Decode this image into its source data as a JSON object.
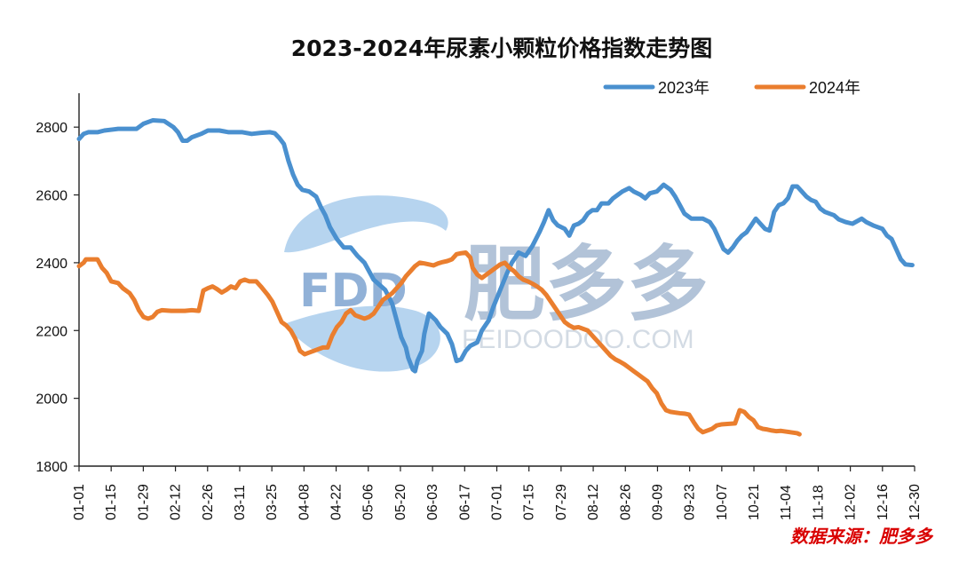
{
  "chart_data": {
    "type": "line",
    "title": "2023-2024年尿素小颗粒价格指数走势图",
    "xlabel": "",
    "ylabel": "",
    "ylim": [
      1800,
      2900
    ],
    "yticks": [
      1800,
      2000,
      2200,
      2400,
      2600,
      2800
    ],
    "xticks": [
      "01-01",
      "01-15",
      "01-29",
      "02-12",
      "02-26",
      "03-11",
      "03-25",
      "04-08",
      "04-22",
      "05-06",
      "05-20",
      "06-03",
      "06-17",
      "07-01",
      "07-15",
      "07-29",
      "08-12",
      "08-26",
      "09-09",
      "09-23",
      "10-07",
      "10-21",
      "11-04",
      "11-18",
      "12-02",
      "12-16",
      "12-30"
    ],
    "x_unit": "day of year",
    "legend_position": "top-right",
    "grid": false,
    "series": [
      {
        "name": "2023年",
        "color": "#4a90cf",
        "points": [
          [
            1,
            2765
          ],
          [
            3,
            2780
          ],
          [
            5,
            2785
          ],
          [
            9,
            2785
          ],
          [
            12,
            2790
          ],
          [
            18,
            2795
          ],
          [
            26,
            2795
          ],
          [
            29,
            2810
          ],
          [
            33,
            2820
          ],
          [
            38,
            2818
          ],
          [
            42,
            2800
          ],
          [
            44,
            2785
          ],
          [
            46,
            2760
          ],
          [
            48,
            2760
          ],
          [
            50,
            2770
          ],
          [
            54,
            2780
          ],
          [
            57,
            2790
          ],
          [
            62,
            2790
          ],
          [
            66,
            2785
          ],
          [
            72,
            2785
          ],
          [
            76,
            2780
          ],
          [
            80,
            2783
          ],
          [
            84,
            2785
          ],
          [
            86,
            2782
          ],
          [
            88,
            2768
          ],
          [
            90,
            2750
          ],
          [
            92,
            2700
          ],
          [
            94,
            2660
          ],
          [
            96,
            2630
          ],
          [
            98,
            2615
          ],
          [
            101,
            2610
          ],
          [
            104,
            2595
          ],
          [
            106,
            2565
          ],
          [
            108,
            2540
          ],
          [
            110,
            2505
          ],
          [
            113,
            2470
          ],
          [
            116,
            2445
          ],
          [
            119,
            2445
          ],
          [
            122,
            2420
          ],
          [
            125,
            2400
          ],
          [
            129,
            2350
          ],
          [
            134,
            2320
          ],
          [
            137,
            2280
          ],
          [
            139,
            2230
          ],
          [
            141,
            2180
          ],
          [
            143,
            2150
          ],
          [
            144,
            2120
          ],
          [
            146,
            2085
          ],
          [
            147,
            2080
          ],
          [
            148,
            2110
          ],
          [
            150,
            2140
          ],
          [
            151,
            2190
          ],
          [
            153,
            2250
          ],
          [
            156,
            2230
          ],
          [
            158,
            2210
          ],
          [
            161,
            2190
          ],
          [
            163,
            2160
          ],
          [
            165,
            2110
          ],
          [
            167,
            2115
          ],
          [
            169,
            2140
          ],
          [
            171,
            2155
          ],
          [
            174,
            2165
          ],
          [
            176,
            2200
          ],
          [
            179,
            2230
          ],
          [
            181,
            2270
          ],
          [
            184,
            2320
          ],
          [
            187,
            2370
          ],
          [
            189,
            2400
          ],
          [
            192,
            2430
          ],
          [
            195,
            2420
          ],
          [
            198,
            2450
          ],
          [
            201,
            2490
          ],
          [
            203,
            2520
          ],
          [
            205,
            2555
          ],
          [
            207,
            2525
          ],
          [
            209,
            2510
          ],
          [
            212,
            2500
          ],
          [
            214,
            2480
          ],
          [
            216,
            2510
          ],
          [
            218,
            2515
          ],
          [
            220,
            2525
          ],
          [
            222,
            2545
          ],
          [
            224,
            2555
          ],
          [
            226,
            2555
          ],
          [
            228,
            2575
          ],
          [
            231,
            2575
          ],
          [
            233,
            2590
          ],
          [
            235,
            2600
          ],
          [
            237,
            2610
          ],
          [
            240,
            2620
          ],
          [
            242,
            2610
          ],
          [
            245,
            2600
          ],
          [
            247,
            2590
          ],
          [
            249,
            2605
          ],
          [
            252,
            2610
          ],
          [
            255,
            2630
          ],
          [
            258,
            2615
          ],
          [
            260,
            2595
          ],
          [
            262,
            2570
          ],
          [
            264,
            2545
          ],
          [
            267,
            2530
          ],
          [
            272,
            2530
          ],
          [
            275,
            2520
          ],
          [
            277,
            2500
          ],
          [
            279,
            2470
          ],
          [
            281,
            2440
          ],
          [
            283,
            2430
          ],
          [
            285,
            2445
          ],
          [
            287,
            2465
          ],
          [
            289,
            2480
          ],
          [
            291,
            2490
          ],
          [
            293,
            2510
          ],
          [
            295,
            2530
          ],
          [
            297,
            2515
          ],
          [
            299,
            2500
          ],
          [
            301,
            2495
          ],
          [
            303,
            2550
          ],
          [
            305,
            2570
          ],
          [
            307,
            2575
          ],
          [
            309,
            2590
          ],
          [
            311,
            2625
          ],
          [
            313,
            2625
          ],
          [
            315,
            2610
          ],
          [
            317,
            2595
          ],
          [
            319,
            2585
          ],
          [
            321,
            2580
          ],
          [
            323,
            2560
          ],
          [
            325,
            2550
          ],
          [
            327,
            2545
          ],
          [
            329,
            2540
          ],
          [
            331,
            2528
          ],
          [
            334,
            2520
          ],
          [
            337,
            2515
          ],
          [
            341,
            2530
          ],
          [
            343,
            2520
          ],
          [
            346,
            2510
          ],
          [
            350,
            2500
          ],
          [
            352,
            2480
          ],
          [
            354,
            2470
          ],
          [
            356,
            2440
          ],
          [
            358,
            2410
          ],
          [
            360,
            2395
          ],
          [
            363,
            2393
          ]
        ]
      },
      {
        "name": "2024年",
        "color": "#ea7e2e",
        "points": [
          [
            1,
            2390
          ],
          [
            3,
            2400
          ],
          [
            4,
            2410
          ],
          [
            9,
            2410
          ],
          [
            11,
            2385
          ],
          [
            13,
            2370
          ],
          [
            15,
            2345
          ],
          [
            18,
            2340
          ],
          [
            20,
            2325
          ],
          [
            23,
            2310
          ],
          [
            25,
            2290
          ],
          [
            27,
            2260
          ],
          [
            29,
            2240
          ],
          [
            31,
            2235
          ],
          [
            33,
            2240
          ],
          [
            35,
            2255
          ],
          [
            37,
            2260
          ],
          [
            41,
            2258
          ],
          [
            43,
            2258
          ],
          [
            47,
            2258
          ],
          [
            50,
            2260
          ],
          [
            53,
            2258
          ],
          [
            55,
            2318
          ],
          [
            57,
            2325
          ],
          [
            59,
            2330
          ],
          [
            61,
            2322
          ],
          [
            63,
            2312
          ],
          [
            65,
            2320
          ],
          [
            67,
            2330
          ],
          [
            69,
            2325
          ],
          [
            71,
            2345
          ],
          [
            73,
            2350
          ],
          [
            75,
            2345
          ],
          [
            78,
            2345
          ],
          [
            80,
            2330
          ],
          [
            83,
            2305
          ],
          [
            85,
            2285
          ],
          [
            87,
            2255
          ],
          [
            89,
            2225
          ],
          [
            91,
            2215
          ],
          [
            93,
            2200
          ],
          [
            95,
            2175
          ],
          [
            97,
            2140
          ],
          [
            99,
            2130
          ],
          [
            101,
            2135
          ],
          [
            103,
            2140
          ],
          [
            105,
            2145
          ],
          [
            107,
            2150
          ],
          [
            109,
            2150
          ],
          [
            111,
            2185
          ],
          [
            113,
            2210
          ],
          [
            115,
            2225
          ],
          [
            117,
            2250
          ],
          [
            119,
            2260
          ],
          [
            121,
            2245
          ],
          [
            123,
            2240
          ],
          [
            125,
            2235
          ],
          [
            127,
            2240
          ],
          [
            129,
            2250
          ],
          [
            131,
            2270
          ],
          [
            133,
            2290
          ],
          [
            135,
            2300
          ],
          [
            137,
            2310
          ],
          [
            139,
            2325
          ],
          [
            141,
            2340
          ],
          [
            143,
            2360
          ],
          [
            145,
            2375
          ],
          [
            147,
            2390
          ],
          [
            149,
            2400
          ],
          [
            151,
            2398
          ],
          [
            153,
            2395
          ],
          [
            155,
            2392
          ],
          [
            157,
            2398
          ],
          [
            159,
            2402
          ],
          [
            161,
            2405
          ],
          [
            163,
            2410
          ],
          [
            165,
            2425
          ],
          [
            167,
            2428
          ],
          [
            169,
            2430
          ],
          [
            171,
            2415
          ],
          [
            172,
            2385
          ],
          [
            174,
            2365
          ],
          [
            176,
            2355
          ],
          [
            178,
            2365
          ],
          [
            180,
            2375
          ],
          [
            182,
            2385
          ],
          [
            184,
            2395
          ],
          [
            186,
            2400
          ],
          [
            188,
            2385
          ],
          [
            190,
            2375
          ],
          [
            192,
            2360
          ],
          [
            194,
            2350
          ],
          [
            196,
            2345
          ],
          [
            198,
            2338
          ],
          [
            200,
            2330
          ],
          [
            202,
            2320
          ],
          [
            204,
            2305
          ],
          [
            206,
            2285
          ],
          [
            208,
            2265
          ],
          [
            210,
            2245
          ],
          [
            212,
            2225
          ],
          [
            214,
            2215
          ],
          [
            216,
            2208
          ],
          [
            218,
            2210
          ],
          [
            220,
            2205
          ],
          [
            222,
            2200
          ],
          [
            224,
            2185
          ],
          [
            226,
            2170
          ],
          [
            228,
            2155
          ],
          [
            230,
            2140
          ],
          [
            232,
            2125
          ],
          [
            234,
            2115
          ],
          [
            236,
            2108
          ],
          [
            238,
            2100
          ],
          [
            240,
            2090
          ],
          [
            242,
            2080
          ],
          [
            244,
            2070
          ],
          [
            246,
            2060
          ],
          [
            248,
            2050
          ],
          [
            250,
            2030
          ],
          [
            252,
            2015
          ],
          [
            254,
            1985
          ],
          [
            256,
            1965
          ],
          [
            258,
            1960
          ],
          [
            260,
            1958
          ],
          [
            262,
            1956
          ],
          [
            264,
            1955
          ],
          [
            266,
            1952
          ],
          [
            268,
            1930
          ],
          [
            270,
            1910
          ],
          [
            272,
            1900
          ],
          [
            274,
            1905
          ],
          [
            276,
            1910
          ],
          [
            278,
            1920
          ],
          [
            280,
            1923
          ],
          [
            282,
            1924
          ],
          [
            284,
            1925
          ],
          [
            286,
            1926
          ],
          [
            288,
            1965
          ],
          [
            290,
            1960
          ],
          [
            292,
            1945
          ],
          [
            294,
            1935
          ],
          [
            296,
            1915
          ],
          [
            298,
            1910
          ],
          [
            300,
            1908
          ],
          [
            302,
            1905
          ],
          [
            304,
            1903
          ],
          [
            306,
            1904
          ],
          [
            308,
            1902
          ],
          [
            310,
            1900
          ],
          [
            312,
            1898
          ],
          [
            313,
            1897
          ],
          [
            314,
            1894
          ]
        ]
      }
    ],
    "source_note": "数据来源：肥多多"
  },
  "watermark": {
    "logo_text": "FDD",
    "brand_text": "肥多多",
    "site_text": "FEIDOODOO.COM",
    "colors": {
      "logo_blue": "#8fbde7",
      "logo_dark": "#5f8fc3",
      "text_blue": "#8fa8c6"
    }
  },
  "style": {
    "axis_color": "#222222",
    "text_color": "#111111",
    "source_color": "#d90000"
  }
}
